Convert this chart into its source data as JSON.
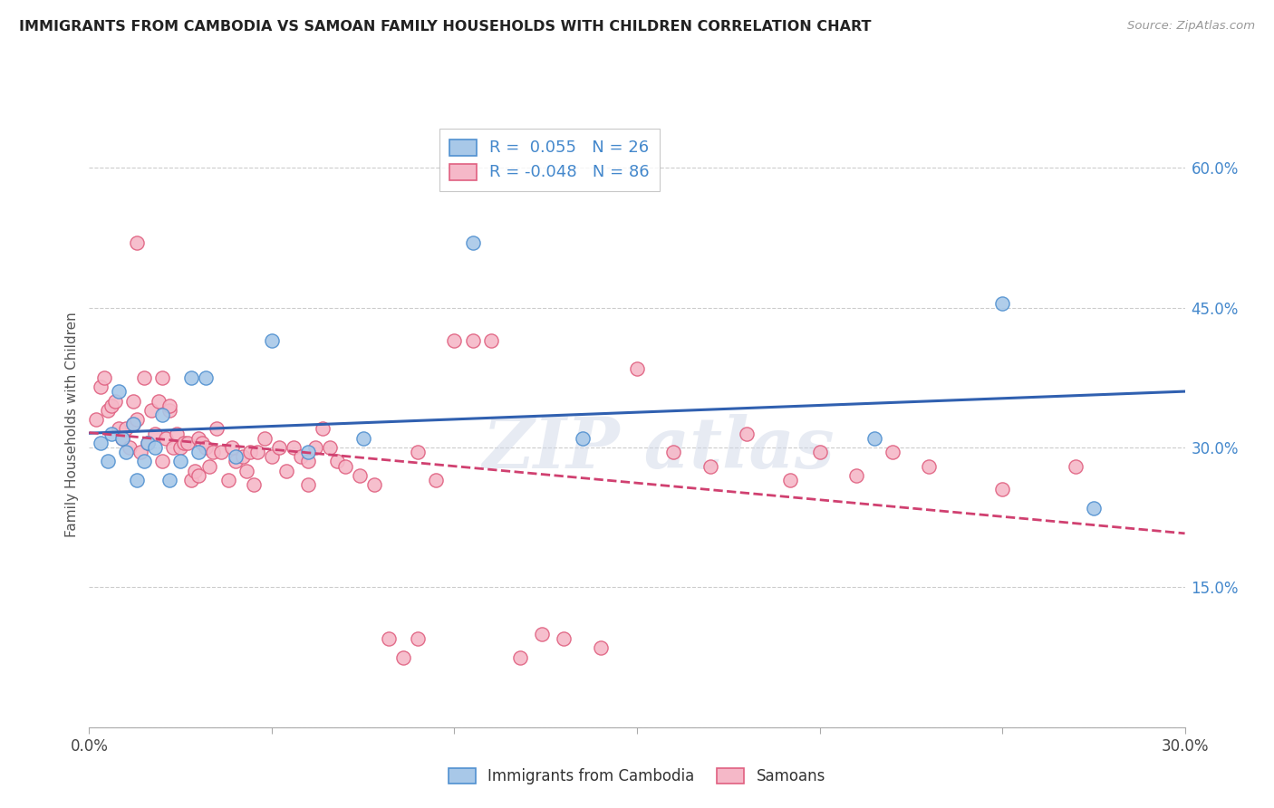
{
  "title": "IMMIGRANTS FROM CAMBODIA VS SAMOAN FAMILY HOUSEHOLDS WITH CHILDREN CORRELATION CHART",
  "source": "Source: ZipAtlas.com",
  "ylabel": "Family Households with Children",
  "xlim": [
    0.0,
    0.3
  ],
  "ylim": [
    0.0,
    0.65
  ],
  "x_ticks": [
    0.0,
    0.05,
    0.1,
    0.15,
    0.2,
    0.25,
    0.3
  ],
  "x_tick_labels": [
    "0.0%",
    "",
    "",
    "",
    "",
    "",
    "30.0%"
  ],
  "y_ticks_right": [
    0.0,
    0.15,
    0.3,
    0.45,
    0.6
  ],
  "y_tick_labels_right": [
    "",
    "15.0%",
    "30.0%",
    "45.0%",
    "60.0%"
  ],
  "color_cambodia_fill": "#a8c8e8",
  "color_samoan_fill": "#f5b8c8",
  "color_cambodia_edge": "#5090d0",
  "color_samoan_edge": "#e06080",
  "color_cambodia_line": "#3060b0",
  "color_samoan_line": "#d04070",
  "background_color": "#ffffff",
  "grid_color": "#cccccc",
  "title_color": "#222222",
  "right_axis_color": "#4488cc",
  "cambodia_x": [
    0.003,
    0.005,
    0.006,
    0.008,
    0.009,
    0.01,
    0.012,
    0.013,
    0.015,
    0.016,
    0.018,
    0.02,
    0.022,
    0.025,
    0.028,
    0.03,
    0.032,
    0.04,
    0.05,
    0.06,
    0.075,
    0.105,
    0.135,
    0.215,
    0.25,
    0.275
  ],
  "cambodia_y": [
    0.305,
    0.285,
    0.315,
    0.36,
    0.31,
    0.295,
    0.325,
    0.265,
    0.285,
    0.305,
    0.3,
    0.335,
    0.265,
    0.285,
    0.375,
    0.295,
    0.375,
    0.29,
    0.415,
    0.295,
    0.31,
    0.52,
    0.31,
    0.31,
    0.455,
    0.235
  ],
  "samoan_x": [
    0.002,
    0.003,
    0.004,
    0.005,
    0.006,
    0.007,
    0.008,
    0.009,
    0.01,
    0.011,
    0.012,
    0.012,
    0.013,
    0.014,
    0.015,
    0.016,
    0.017,
    0.018,
    0.019,
    0.02,
    0.02,
    0.021,
    0.022,
    0.023,
    0.024,
    0.025,
    0.026,
    0.027,
    0.028,
    0.029,
    0.03,
    0.031,
    0.032,
    0.033,
    0.034,
    0.035,
    0.036,
    0.038,
    0.039,
    0.04,
    0.042,
    0.043,
    0.044,
    0.046,
    0.048,
    0.05,
    0.052,
    0.054,
    0.056,
    0.058,
    0.06,
    0.062,
    0.064,
    0.066,
    0.068,
    0.07,
    0.074,
    0.078,
    0.082,
    0.086,
    0.09,
    0.095,
    0.1,
    0.105,
    0.11,
    0.118,
    0.124,
    0.13,
    0.14,
    0.15,
    0.16,
    0.17,
    0.18,
    0.192,
    0.2,
    0.21,
    0.22,
    0.23,
    0.25,
    0.27,
    0.013,
    0.022,
    0.03,
    0.045,
    0.06,
    0.09
  ],
  "samoan_y": [
    0.33,
    0.365,
    0.375,
    0.34,
    0.345,
    0.35,
    0.32,
    0.31,
    0.32,
    0.3,
    0.35,
    0.325,
    0.33,
    0.295,
    0.375,
    0.305,
    0.34,
    0.315,
    0.35,
    0.285,
    0.375,
    0.31,
    0.34,
    0.3,
    0.315,
    0.3,
    0.305,
    0.305,
    0.265,
    0.275,
    0.31,
    0.305,
    0.3,
    0.28,
    0.295,
    0.32,
    0.295,
    0.265,
    0.3,
    0.285,
    0.29,
    0.275,
    0.295,
    0.295,
    0.31,
    0.29,
    0.3,
    0.275,
    0.3,
    0.29,
    0.285,
    0.3,
    0.32,
    0.3,
    0.285,
    0.28,
    0.27,
    0.26,
    0.095,
    0.075,
    0.095,
    0.265,
    0.415,
    0.415,
    0.415,
    0.075,
    0.1,
    0.095,
    0.085,
    0.385,
    0.295,
    0.28,
    0.315,
    0.265,
    0.295,
    0.27,
    0.295,
    0.28,
    0.255,
    0.28,
    0.52,
    0.345,
    0.27,
    0.26,
    0.26,
    0.295
  ]
}
